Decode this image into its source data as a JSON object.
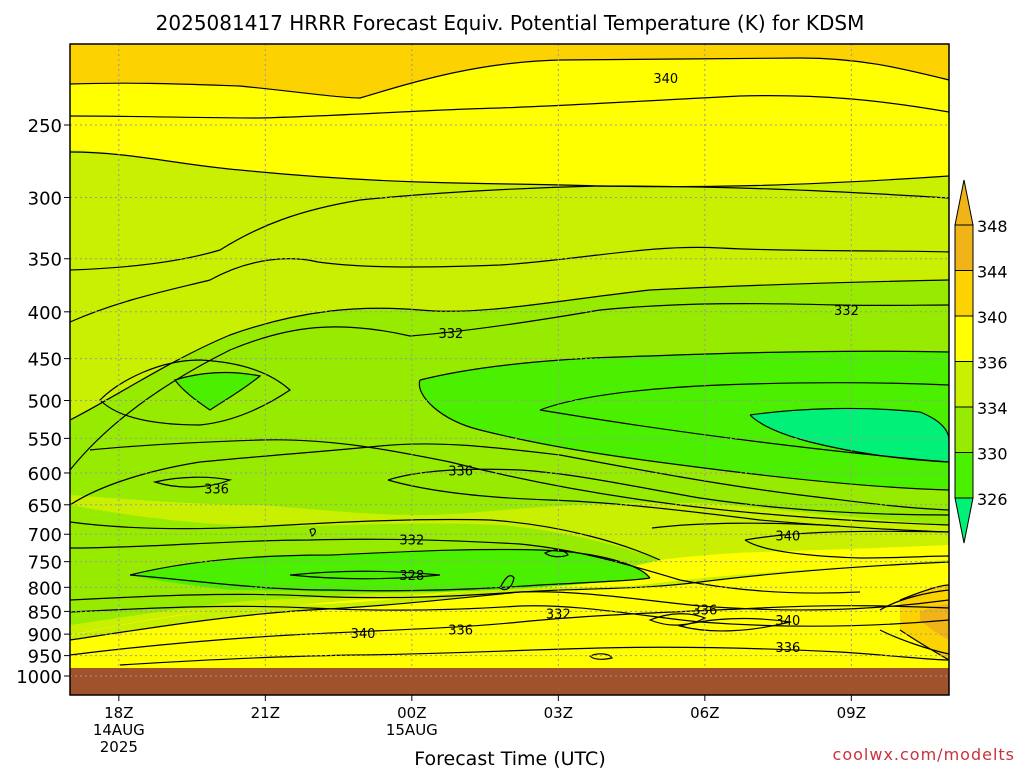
{
  "chart_data": {
    "type": "heatmap",
    "title": "2025081417 HRRR Forecast Equiv. Potential Temperature (K) for KDSM",
    "xlabel": "Forecast Time (UTC)",
    "ylabel": "",
    "credit": "coolwx.com/modelts",
    "x_ticks": [
      {
        "label": "18Z",
        "date": "14AUG",
        "year": "2025",
        "hour": 18
      },
      {
        "label": "21Z",
        "date": "",
        "year": "",
        "hour": 21
      },
      {
        "label": "00Z",
        "date": "15AUG",
        "year": "",
        "hour": 24
      },
      {
        "label": "03Z",
        "date": "",
        "year": "",
        "hour": 27
      },
      {
        "label": "06Z",
        "date": "",
        "year": "",
        "hour": 30
      },
      {
        "label": "09Z",
        "date": "",
        "year": "",
        "hour": 33
      }
    ],
    "x_range_hours": [
      17,
      35
    ],
    "y_axis": "pressure (hPa)",
    "y_ticks": [
      250,
      300,
      350,
      400,
      450,
      500,
      550,
      600,
      650,
      700,
      750,
      800,
      850,
      900,
      950,
      1000
    ],
    "y_range": [
      200,
      1040
    ],
    "surface_pressure": 975,
    "grid": true,
    "colorbar": {
      "labels": [
        "348",
        "344",
        "340",
        "336",
        "334",
        "330",
        "326"
      ],
      "colors": [
        "#f0b419",
        "#fcd200",
        "#ffff00",
        "#c8f000",
        "#96eb00",
        "#4bf000",
        "#00f078"
      ]
    },
    "contour_labels": [
      {
        "text": "340",
        "hour": 29.2,
        "p": 222
      },
      {
        "text": "332",
        "hour": 32.9,
        "p": 398
      },
      {
        "text": "332",
        "hour": 24.8,
        "p": 422
      },
      {
        "text": "336",
        "hour": 25.0,
        "p": 596
      },
      {
        "text": "336",
        "hour": 20.0,
        "p": 624
      },
      {
        "text": "332",
        "hour": 24.0,
        "p": 709
      },
      {
        "text": "340",
        "hour": 31.7,
        "p": 702
      },
      {
        "text": "328",
        "hour": 24.0,
        "p": 776
      },
      {
        "text": "336",
        "hour": 30.0,
        "p": 846
      },
      {
        "text": "332",
        "hour": 27.0,
        "p": 854
      },
      {
        "text": "340",
        "hour": 31.7,
        "p": 869
      },
      {
        "text": "336",
        "hour": 25.0,
        "p": 890
      },
      {
        "text": "340",
        "hour": 23.0,
        "p": 897
      },
      {
        "text": "336",
        "hour": 31.7,
        "p": 930
      }
    ]
  }
}
